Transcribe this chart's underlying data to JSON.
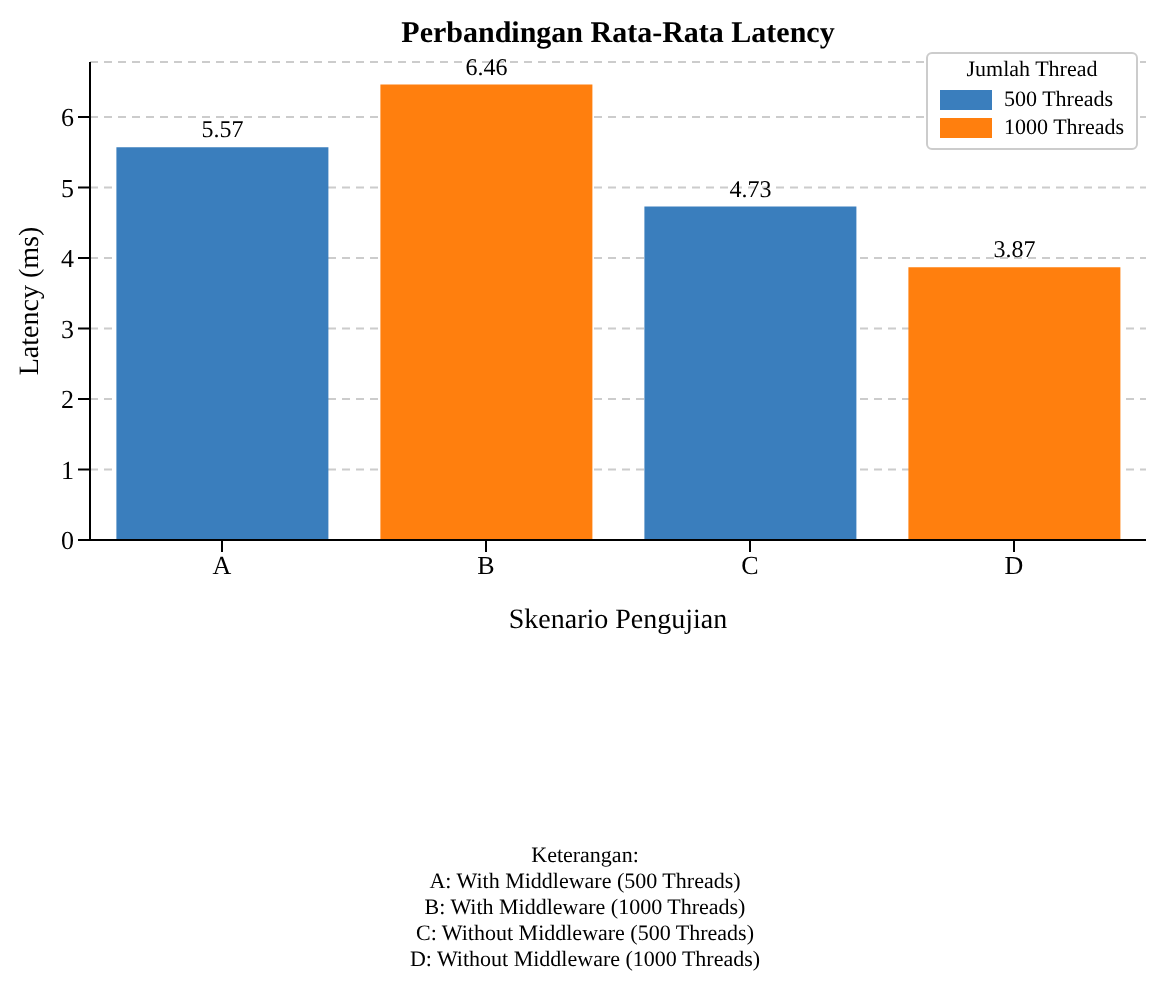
{
  "chart_data": {
    "type": "bar",
    "title": "Perbandingan Rata-Rata Latency",
    "xlabel": "Skenario Pengujian",
    "ylabel": "Latency (ms)",
    "legend_title": "Jumlah Thread",
    "categories": [
      "A",
      "B",
      "C",
      "D"
    ],
    "series": [
      {
        "name": "500 Threads",
        "color": "#3a7ebd",
        "values": [
          5.57,
          null,
          4.73,
          null
        ]
      },
      {
        "name": "1000 Threads",
        "color": "#ff7f0e",
        "values": [
          null,
          6.46,
          null,
          3.87
        ]
      }
    ],
    "ylim": [
      0,
      6.78
    ],
    "yticks": [
      0,
      1,
      2,
      3,
      4,
      5,
      6
    ],
    "grid": "y",
    "legend": "top right",
    "data_labels": true,
    "annotations": [
      "Keterangan:",
      "A: With Middleware (500 Threads)",
      "B: With Middleware (1000 Threads)",
      "C: Without Middleware (500 Threads)",
      "D: Without Middleware (1000 Threads)"
    ]
  }
}
